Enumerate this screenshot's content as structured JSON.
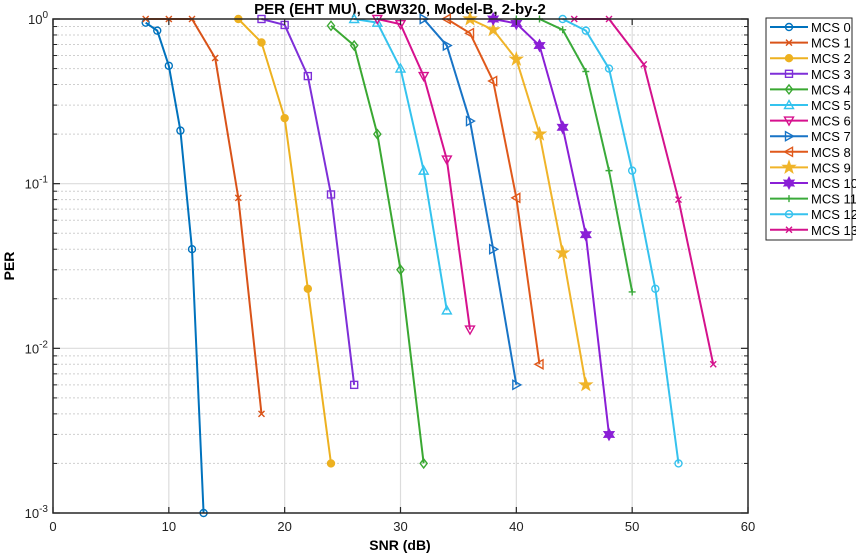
{
  "chart_data": {
    "type": "line",
    "title": "PER (EHT MU), CBW320, Model-B, 2-by-2",
    "xlabel": "SNR (dB)",
    "ylabel": "PER",
    "xlim": [
      0,
      60
    ],
    "ylim": [
      0.001,
      1
    ],
    "yscale": "log",
    "grid": true,
    "legend_position": "outside-right-top",
    "x_ticks": [
      "0",
      "10",
      "20",
      "30",
      "40",
      "50",
      "60"
    ],
    "y_ticks": [
      {
        "base": "10",
        "exp": "0"
      },
      {
        "base": "10",
        "exp": "-1"
      },
      {
        "base": "10",
        "exp": "-2"
      },
      {
        "base": "10",
        "exp": "-3"
      }
    ],
    "series": [
      {
        "name": "MCS 0",
        "color": "#0072BD",
        "marker": "circle",
        "x": [
          8,
          9,
          10,
          11,
          12,
          13
        ],
        "values": [
          0.95,
          0.85,
          0.52,
          0.21,
          0.04,
          0.001
        ]
      },
      {
        "name": "MCS 1",
        "color": "#D95319",
        "marker": "x",
        "x": [
          8,
          10,
          12,
          14,
          16,
          18
        ],
        "values": [
          1,
          1,
          1,
          0.58,
          0.082,
          0.004
        ]
      },
      {
        "name": "MCS 2",
        "color": "#EDB120",
        "marker": "dot",
        "x": [
          16,
          18,
          20,
          22,
          24
        ],
        "values": [
          1,
          0.72,
          0.25,
          0.023,
          0.002
        ]
      },
      {
        "name": "MCS 3",
        "color": "#7E2FD8",
        "marker": "square",
        "x": [
          18,
          20,
          22,
          24,
          26
        ],
        "values": [
          1,
          0.92,
          0.45,
          0.086,
          0.006
        ]
      },
      {
        "name": "MCS 4",
        "color": "#3AA832",
        "marker": "diamond",
        "x": [
          24,
          26,
          28,
          30,
          32
        ],
        "values": [
          0.91,
          0.69,
          0.2,
          0.03,
          0.002
        ]
      },
      {
        "name": "MCS 5",
        "color": "#34C3EE",
        "marker": "triangle-up",
        "x": [
          26,
          28,
          30,
          32,
          34
        ],
        "values": [
          1,
          0.95,
          0.5,
          0.12,
          0.017
        ]
      },
      {
        "name": "MCS 6",
        "color": "#D6118E",
        "marker": "triangle-down",
        "x": [
          28,
          30,
          32,
          34,
          36
        ],
        "values": [
          1,
          0.93,
          0.45,
          0.14,
          0.013
        ]
      },
      {
        "name": "MCS 7",
        "color": "#1874C6",
        "marker": "triangle-right",
        "x": [
          32,
          34,
          36,
          38,
          40
        ],
        "values": [
          1,
          0.69,
          0.24,
          0.04,
          0.006
        ]
      },
      {
        "name": "MCS 8",
        "color": "#E0591B",
        "marker": "triangle-left",
        "x": [
          34,
          36,
          38,
          40,
          42
        ],
        "values": [
          1,
          0.82,
          0.42,
          0.082,
          0.008
        ]
      },
      {
        "name": "MCS 9",
        "color": "#F0B429",
        "marker": "star",
        "x": [
          36,
          38,
          40,
          42,
          44,
          46
        ],
        "values": [
          1,
          0.86,
          0.57,
          0.2,
          0.038,
          0.006
        ]
      },
      {
        "name": "MCS 10",
        "color": "#8A1FD6",
        "marker": "hexagram",
        "x": [
          38,
          40,
          42,
          44,
          46,
          48
        ],
        "values": [
          1,
          0.94,
          0.69,
          0.22,
          0.049,
          0.003
        ]
      },
      {
        "name": "MCS 11",
        "color": "#3AAA3A",
        "marker": "plus",
        "x": [
          40,
          42,
          44,
          46,
          48,
          50
        ],
        "values": [
          1,
          1,
          0.86,
          0.48,
          0.12,
          0.022
        ]
      },
      {
        "name": "MCS 12",
        "color": "#36C2EE",
        "marker": "circle",
        "x": [
          44,
          46,
          48,
          50,
          52,
          54
        ],
        "values": [
          1,
          0.85,
          0.5,
          0.12,
          0.023,
          0.002
        ]
      },
      {
        "name": "MCS 13",
        "color": "#D4128C",
        "marker": "x",
        "x": [
          45,
          48,
          51,
          54,
          57
        ],
        "values": [
          1,
          1,
          0.53,
          0.08,
          0.008
        ]
      }
    ]
  }
}
